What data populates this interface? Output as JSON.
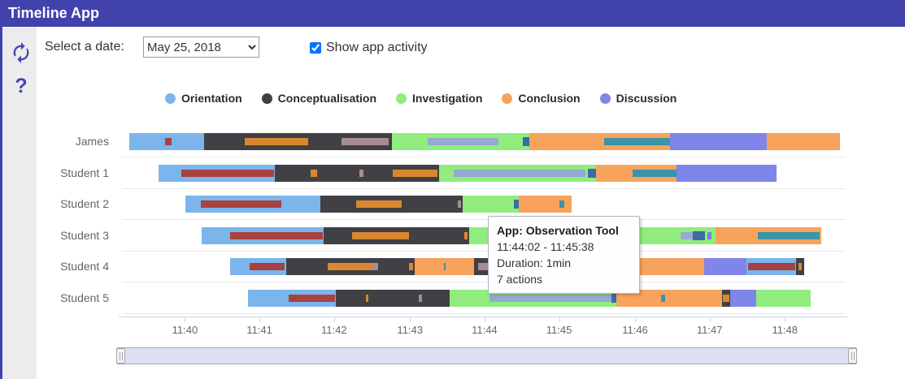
{
  "app": {
    "title": "Timeline App"
  },
  "sidebar": {
    "help_glyph": "?"
  },
  "controls": {
    "date_label": "Select a date:",
    "date_value": "May 25, 2018",
    "show_app_activity_label": "Show app activity",
    "show_app_activity_checked": true
  },
  "legend": [
    {
      "label": "Orientation",
      "color": "#7cb5ec"
    },
    {
      "label": "Conceptualisation",
      "color": "#404045"
    },
    {
      "label": "Investigation",
      "color": "#90ed7d"
    },
    {
      "label": "Conclusion",
      "color": "#f7a35c"
    },
    {
      "label": "Discussion",
      "color": "#8085e9"
    }
  ],
  "tooltip": {
    "title": "App: Observation Tool",
    "time_range": "11:44:02 - 11:45:38",
    "duration": "Duration: 1min",
    "actions": "7 actions"
  },
  "chart_data": {
    "type": "timeline",
    "x_axis": {
      "tick_labels": [
        "11:40",
        "11:41",
        "11:42",
        "11:43",
        "11:44",
        "11:45",
        "11:46",
        "11:47",
        "11:48"
      ],
      "tick_pct": [
        8.7,
        19.0,
        29.3,
        39.8,
        50.1,
        60.4,
        70.9,
        81.2,
        91.6
      ]
    },
    "phase_colors": {
      "Orientation": "#7cb5ec",
      "Conceptualisation": "#404045",
      "Investigation": "#90ed7d",
      "Conclusion": "#f7a35c",
      "Discussion": "#8085e9"
    },
    "activity_colors": {
      "red": "#a8423f",
      "orange": "#d9882e",
      "mauve": "#a98b92",
      "steel": "#96a9d2",
      "navy": "#3c6ba6",
      "teal": "#3a95a8",
      "purple": "#7a7fe0"
    },
    "rows": [
      {
        "label": "James",
        "segments": [
          [
            "Orientation",
            1.0,
            11.3
          ],
          [
            "Conceptualisation",
            11.3,
            37.3
          ],
          [
            "Investigation",
            37.3,
            56.3
          ],
          [
            "Conclusion",
            56.3,
            75.7
          ],
          [
            "Discussion",
            75.7,
            89.1
          ],
          [
            "Conclusion",
            89.1,
            99.2
          ]
        ],
        "activity": [
          [
            "red",
            6.0,
            6.9
          ],
          [
            "orange",
            17.0,
            25.7
          ],
          [
            "mauve",
            30.3,
            36.9
          ],
          [
            "steel",
            42.2,
            52.0
          ],
          [
            "navy",
            55.4,
            56.3
          ],
          [
            "teal",
            66.6,
            75.7
          ]
        ]
      },
      {
        "label": "Student 1",
        "segments": [
          [
            "Orientation",
            5.1,
            21.1
          ],
          [
            "Conceptualisation",
            21.1,
            43.8
          ],
          [
            "Investigation",
            43.8,
            65.5
          ],
          [
            "Conclusion",
            65.5,
            76.6
          ],
          [
            "Discussion",
            76.6,
            90.4
          ]
        ],
        "activity": [
          [
            "red",
            8.2,
            21.0
          ],
          [
            "orange",
            26.1,
            27.0
          ],
          [
            "mauve",
            32.8,
            33.4
          ],
          [
            "orange",
            37.4,
            43.6
          ],
          [
            "steel",
            45.8,
            64.0
          ],
          [
            "navy",
            64.4,
            65.5
          ],
          [
            "teal",
            70.6,
            76.6
          ]
        ]
      },
      {
        "label": "Student 2",
        "segments": [
          [
            "Orientation",
            8.8,
            27.4
          ],
          [
            "Conceptualisation",
            27.4,
            47.1
          ],
          [
            "Investigation",
            47.1,
            54.8
          ],
          [
            "Conclusion",
            54.8,
            62.1
          ]
        ],
        "activity": [
          [
            "red",
            10.9,
            22.0
          ],
          [
            "orange",
            32.4,
            38.7
          ],
          [
            "mauve",
            46.4,
            46.9
          ],
          [
            "navy",
            54.2,
            54.8
          ],
          [
            "teal",
            60.4,
            61.1
          ]
        ]
      },
      {
        "label": "Student 3",
        "segments": [
          [
            "Orientation",
            11.0,
            27.9
          ],
          [
            "Conceptualisation",
            27.9,
            48.0
          ],
          [
            "Investigation",
            48.0,
            82.0
          ],
          [
            "Conclusion",
            82.0,
            96.6
          ]
        ],
        "activity": [
          [
            "red",
            14.9,
            27.8
          ],
          [
            "orange",
            31.8,
            39.7
          ],
          [
            "orange",
            47.3,
            47.8
          ],
          [
            "steel",
            77.2,
            78.9
          ],
          [
            "navy",
            78.9,
            80.6
          ],
          [
            "purple",
            80.9,
            81.5
          ],
          [
            "teal",
            87.9,
            96.4
          ]
        ]
      },
      {
        "label": "Student 4",
        "segments": [
          [
            "Orientation",
            14.9,
            22.7
          ],
          [
            "Conceptualisation",
            22.7,
            40.4
          ],
          [
            "Conclusion",
            40.4,
            48.7
          ],
          [
            "Conceptualisation",
            48.7,
            50.9
          ],
          [
            "Investigation",
            50.9,
            61.8
          ],
          [
            "Conclusion",
            61.8,
            80.4
          ],
          [
            "Discussion",
            80.4,
            86.3
          ],
          [
            "Orientation",
            86.3,
            93.1
          ],
          [
            "Conceptualisation",
            93.1,
            94.3
          ]
        ],
        "activity": [
          [
            "red",
            17.6,
            22.5
          ],
          [
            "orange",
            28.4,
            34.8
          ],
          [
            "mauve",
            34.6,
            35.4
          ],
          [
            "orange",
            39.7,
            40.2
          ],
          [
            "teal",
            44.5,
            44.7
          ],
          [
            "mauve",
            49.2,
            50.6
          ],
          [
            "red",
            86.5,
            93.0
          ],
          [
            "orange",
            93.5,
            93.9
          ]
        ]
      },
      {
        "label": "Student 5",
        "segments": [
          [
            "Orientation",
            17.4,
            29.6
          ],
          [
            "Conceptualisation",
            29.6,
            45.3
          ],
          [
            "Investigation",
            45.3,
            68.3
          ],
          [
            "Conclusion",
            68.3,
            82.9
          ],
          [
            "Conceptualisation",
            82.9,
            84.0
          ],
          [
            "Discussion",
            84.0,
            87.6
          ],
          [
            "Investigation",
            87.6,
            95.2
          ]
        ],
        "activity": [
          [
            "red",
            23.0,
            29.4
          ],
          [
            "orange",
            33.7,
            34.0
          ],
          [
            "mauve",
            41.0,
            41.5
          ],
          [
            "steel",
            50.8,
            67.6
          ],
          [
            "navy",
            67.6,
            68.3
          ],
          [
            "teal",
            74.5,
            75.1
          ],
          [
            "orange",
            83.0,
            83.9
          ]
        ]
      }
    ]
  }
}
